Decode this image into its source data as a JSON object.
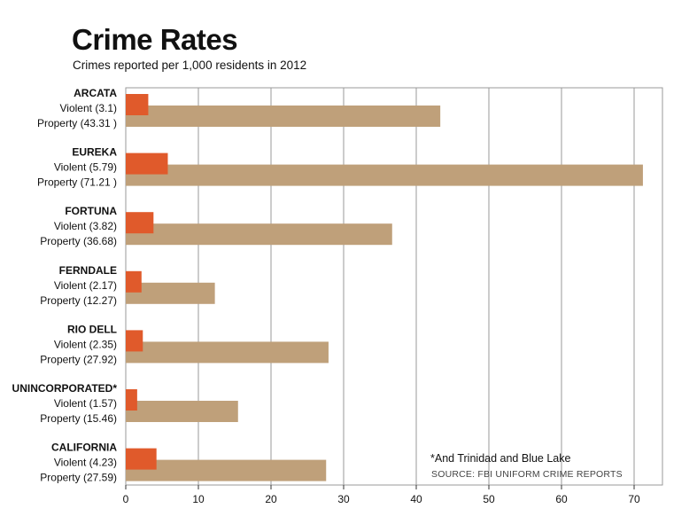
{
  "title": "Crime Rates",
  "subtitle": "Crimes reported per 1,000 residents in 2012",
  "note": "*And Trinidad and Blue Lake",
  "source": "SOURCE: FBI UNIFORM CRIME REPORTS",
  "colors": {
    "violent": "#e05a2b",
    "property": "#bfa07a",
    "grid": "#999999"
  },
  "chart_data": {
    "type": "bar",
    "orientation": "horizontal",
    "xlim": [
      0,
      72
    ],
    "xticks": [
      0,
      10,
      20,
      30,
      40,
      50,
      60,
      70
    ],
    "grid": true,
    "groups": [
      {
        "name": "ARCATA",
        "violent_label": "Violent (3.1)",
        "property_label": "Property (43.31 )",
        "violent": 3.1,
        "property": 43.31
      },
      {
        "name": "EUREKA",
        "violent_label": "Violent (5.79)",
        "property_label": "Property (71.21 )",
        "violent": 5.79,
        "property": 71.21
      },
      {
        "name": "FORTUNA",
        "violent_label": "Violent (3.82)",
        "property_label": "Property (36.68)",
        "violent": 3.82,
        "property": 36.68
      },
      {
        "name": "FERNDALE",
        "violent_label": "Violent (2.17)",
        "property_label": "Property (12.27)",
        "violent": 2.17,
        "property": 12.27
      },
      {
        "name": "RIO DELL",
        "violent_label": "Violent (2.35)",
        "property_label": "Property (27.92)",
        "violent": 2.35,
        "property": 27.92
      },
      {
        "name": "UNINCORPORATED*",
        "violent_label": "Violent (1.57)",
        "property_label": "Property (15.46)",
        "violent": 1.57,
        "property": 15.46
      },
      {
        "name": "CALIFORNIA",
        "violent_label": "Violent (4.23)",
        "property_label": "Property (27.59)",
        "violent": 4.23,
        "property": 27.59
      }
    ]
  }
}
